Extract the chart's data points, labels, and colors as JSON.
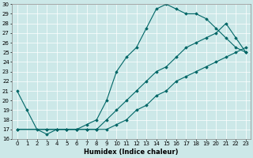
{
  "title": "",
  "xlabel": "Humidex (Indice chaleur)",
  "ylabel": "",
  "bg_color": "#cce8e8",
  "line_color": "#006666",
  "grid_color": "#ffffff",
  "ylim": [
    16,
    30
  ],
  "xlim": [
    -0.5,
    23.5
  ],
  "yticks": [
    16,
    17,
    18,
    19,
    20,
    21,
    22,
    23,
    24,
    25,
    26,
    27,
    28,
    29,
    30
  ],
  "xticks": [
    0,
    1,
    2,
    3,
    4,
    5,
    6,
    7,
    8,
    9,
    10,
    11,
    12,
    13,
    14,
    15,
    16,
    17,
    18,
    19,
    20,
    21,
    22,
    23
  ],
  "line1_x": [
    0,
    1,
    2,
    3,
    4,
    5,
    6,
    7,
    8,
    9,
    10,
    11,
    12,
    13,
    14,
    15,
    16,
    17,
    18,
    19,
    20,
    21,
    22,
    23
  ],
  "line1_y": [
    21,
    19,
    17,
    16.5,
    17,
    17,
    17,
    17.5,
    18,
    20,
    23,
    24.5,
    25.5,
    27.5,
    29.5,
    30,
    29.5,
    29,
    29,
    28.5,
    27.5,
    26.5,
    25.5,
    25
  ],
  "line2_x": [
    0,
    3,
    4,
    5,
    6,
    7,
    8,
    9,
    10,
    11,
    12,
    13,
    14,
    15,
    16,
    17,
    18,
    19,
    20,
    21,
    22,
    23
  ],
  "line2_y": [
    17,
    17,
    17,
    17,
    17,
    17,
    17,
    18,
    19,
    20,
    21,
    22,
    23,
    23.5,
    24.5,
    25.5,
    26,
    26.5,
    27,
    28,
    26.5,
    25
  ],
  "line3_x": [
    0,
    3,
    4,
    5,
    6,
    7,
    8,
    9,
    10,
    11,
    12,
    13,
    14,
    15,
    16,
    17,
    18,
    19,
    20,
    21,
    22,
    23
  ],
  "line3_y": [
    17,
    17,
    17,
    17,
    17,
    17,
    17,
    17,
    17.5,
    18,
    19,
    19.5,
    20.5,
    21,
    22,
    22.5,
    23,
    23.5,
    24,
    24.5,
    25,
    25.5
  ],
  "marker": "D",
  "markersize": 1.8,
  "linewidth": 0.8,
  "xlabel_fontsize": 6,
  "tick_fontsize": 5
}
